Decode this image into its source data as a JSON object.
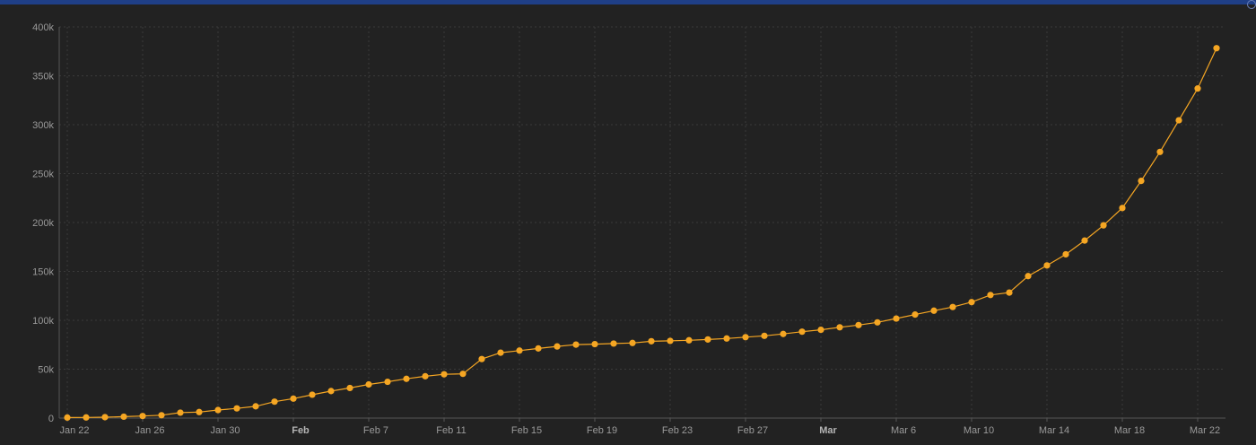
{
  "chart_data": {
    "type": "line",
    "title": "",
    "xlabel": "",
    "ylabel": "",
    "x_ticks": [
      {
        "label": "Jan 22",
        "bold": false
      },
      {
        "label": "Jan 26",
        "bold": false
      },
      {
        "label": "Jan 30",
        "bold": false
      },
      {
        "label": "Feb",
        "bold": true
      },
      {
        "label": "Feb 7",
        "bold": false
      },
      {
        "label": "Feb 11",
        "bold": false
      },
      {
        "label": "Feb 15",
        "bold": false
      },
      {
        "label": "Feb 19",
        "bold": false
      },
      {
        "label": "Feb 23",
        "bold": false
      },
      {
        "label": "Feb 27",
        "bold": false
      },
      {
        "label": "Mar",
        "bold": true
      },
      {
        "label": "Mar 6",
        "bold": false
      },
      {
        "label": "Mar 10",
        "bold": false
      },
      {
        "label": "Mar 14",
        "bold": false
      },
      {
        "label": "Mar 18",
        "bold": false
      },
      {
        "label": "Mar 22",
        "bold": false
      }
    ],
    "y_ticks": [
      "0",
      "50k",
      "100k",
      "150k",
      "200k",
      "250k",
      "300k",
      "350k",
      "400k"
    ],
    "ylim": [
      0,
      400000
    ],
    "grid": true,
    "colors": {
      "line": "#f5a623",
      "grid": "#3a3a3a",
      "axis": "#555555"
    },
    "x": [
      "Jan 22",
      "Jan 23",
      "Jan 24",
      "Jan 25",
      "Jan 26",
      "Jan 27",
      "Jan 28",
      "Jan 29",
      "Jan 30",
      "Jan 31",
      "Feb 1",
      "Feb 2",
      "Feb 3",
      "Feb 4",
      "Feb 5",
      "Feb 6",
      "Feb 7",
      "Feb 8",
      "Feb 9",
      "Feb 10",
      "Feb 11",
      "Feb 12",
      "Feb 13",
      "Feb 14",
      "Feb 15",
      "Feb 16",
      "Feb 17",
      "Feb 18",
      "Feb 19",
      "Feb 20",
      "Feb 21",
      "Feb 22",
      "Feb 23",
      "Feb 24",
      "Feb 25",
      "Feb 26",
      "Feb 27",
      "Feb 28",
      "Feb 29",
      "Mar 1",
      "Mar 2",
      "Mar 3",
      "Mar 4",
      "Mar 5",
      "Mar 6",
      "Mar 7",
      "Mar 8",
      "Mar 9",
      "Mar 10",
      "Mar 11",
      "Mar 12",
      "Mar 13",
      "Mar 14",
      "Mar 15",
      "Mar 16",
      "Mar 17",
      "Mar 18",
      "Mar 19",
      "Mar 20",
      "Mar 21",
      "Mar 22",
      "Mar 23"
    ],
    "series": [
      {
        "values": [
          555,
          654,
          941,
          1434,
          2118,
          2927,
          5578,
          6166,
          8234,
          9927,
          12038,
          16787,
          19881,
          23892,
          27635,
          30794,
          34391,
          37120,
          40150,
          42762,
          44802,
          45221,
          60368,
          66885,
          69030,
          71224,
          73258,
          75136,
          75639,
          76197,
          76819,
          78572,
          78958,
          79561,
          80406,
          81388,
          82746,
          84112,
          86011,
          88369,
          90306,
          92840,
          95120,
          97886,
          101800,
          105836,
          109835,
          113582,
          118582,
          125865,
          128343,
          145193,
          156099,
          167447,
          181546,
          197102,
          214821,
          242570,
          272208,
          304507,
          337020,
          378231
        ]
      }
    ]
  }
}
